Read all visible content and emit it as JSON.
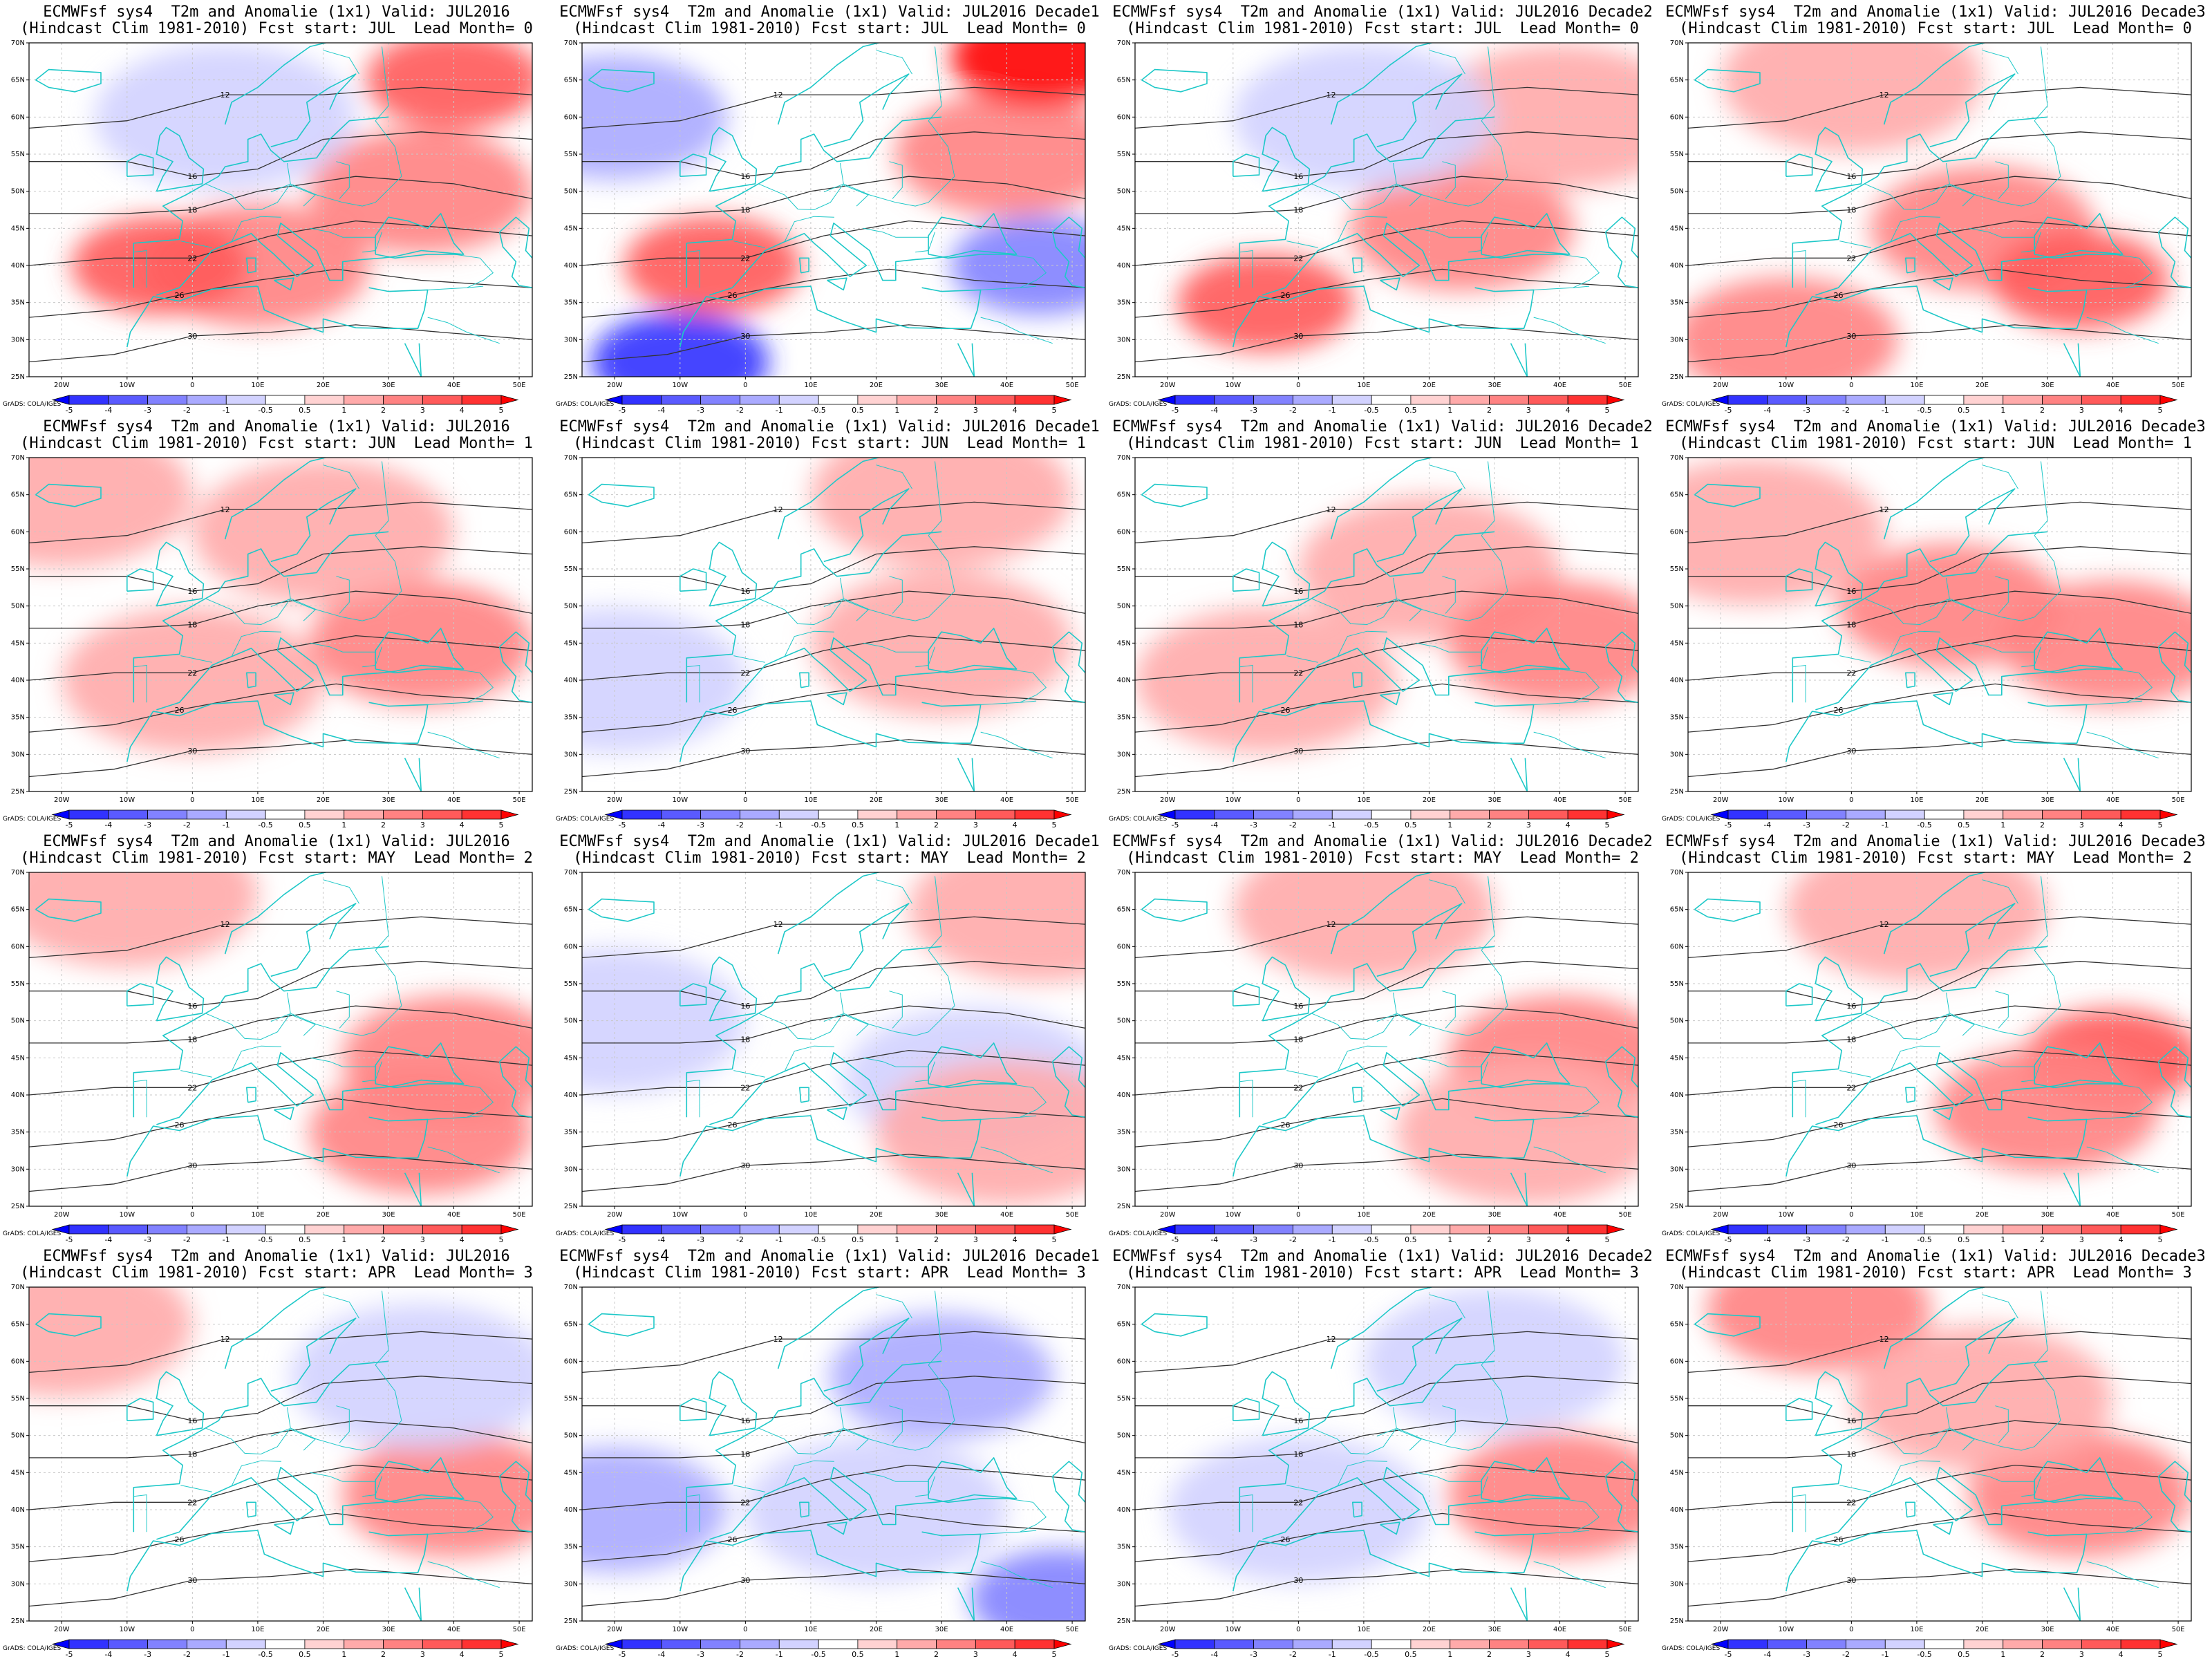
{
  "figure": {
    "credit": "GrADS: COLA/IGES",
    "lon_ticks": [
      "20W",
      "10W",
      "0",
      "10E",
      "20E",
      "30E",
      "40E",
      "50E"
    ],
    "lat_ticks": [
      "25N",
      "30N",
      "35N",
      "40N",
      "45N",
      "50N",
      "55N",
      "60N",
      "65N",
      "70N"
    ],
    "colorbar": {
      "labels": [
        "-5",
        "-4",
        "-3",
        "-2",
        "-1",
        "-0.5",
        "0.5",
        "1",
        "2",
        "3",
        "4",
        "5"
      ],
      "colors": [
        "#0000ff",
        "#3232ff",
        "#5a5aff",
        "#8282ff",
        "#aaaaff",
        "#d2d2ff",
        "#ffffff",
        "#ffd2d2",
        "#ffaaaa",
        "#ff8282",
        "#ff5a5a",
        "#ff3232",
        "#ff0000"
      ]
    },
    "coast_color": "#1ec8c8",
    "contour_labels": [
      "12",
      "16",
      "18",
      "22",
      "26",
      "30"
    ]
  },
  "panels": [
    {
      "line1": "ECMWFsf sys4  T2m and Anomalie (1x1) Valid: JUL2016",
      "line2": "(Hindcast Clim 1981-2010) Fcst start: JUL  Lead Month= 0",
      "anomaly": [
        {
          "lon": 10,
          "lat": 40,
          "v": 2
        },
        {
          "lon": -5,
          "lat": 40,
          "v": 3
        },
        {
          "lon": 35,
          "lat": 50,
          "v": 2
        },
        {
          "lon": 40,
          "lat": 65,
          "v": 3
        },
        {
          "lon": 5,
          "lat": 60,
          "v": -1
        }
      ]
    },
    {
      "line1": "ECMWFsf sys4  T2m and Anomalie (1x1) Valid: JUL2016 Decade1",
      "line2": "(Hindcast Clim 1981-2010) Fcst start: JUL  Lead Month= 0",
      "anomaly": [
        {
          "lon": -20,
          "lat": 60,
          "v": -2
        },
        {
          "lon": -10,
          "lat": 27,
          "v": -5
        },
        {
          "lon": 40,
          "lat": 55,
          "v": 2
        },
        {
          "lon": 45,
          "lat": 68,
          "v": 5
        },
        {
          "lon": -5,
          "lat": 40,
          "v": 3
        },
        {
          "lon": 45,
          "lat": 40,
          "v": -3
        }
      ]
    },
    {
      "line1": "ECMWFsf sys4  T2m and Anomalie (1x1) Valid: JUL2016 Decade2",
      "line2": "(Hindcast Clim 1981-2010) Fcst start: JUL  Lead Month= 0",
      "anomaly": [
        {
          "lon": 25,
          "lat": 45,
          "v": 2
        },
        {
          "lon": -5,
          "lat": 35,
          "v": 3
        },
        {
          "lon": 40,
          "lat": 60,
          "v": 1
        },
        {
          "lon": 10,
          "lat": 60,
          "v": -1
        }
      ]
    },
    {
      "line1": "ECMWFsf sys4  T2m and Anomalie (1x1) Valid: JUL2016 Decade3",
      "line2": "(Hindcast Clim 1981-2010) Fcst start: JUL  Lead Month= 0",
      "anomaly": [
        {
          "lon": 20,
          "lat": 45,
          "v": 2
        },
        {
          "lon": 35,
          "lat": 38,
          "v": 3
        },
        {
          "lon": 0,
          "lat": 65,
          "v": 1
        },
        {
          "lon": -10,
          "lat": 30,
          "v": 2
        }
      ]
    },
    {
      "line1": "ECMWFsf sys4  T2m and Anomalie (1x1) Valid: JUL2016",
      "line2": "(Hindcast Clim 1981-2010) Fcst start: JUN  Lead Month= 1",
      "anomaly": [
        {
          "lon": 35,
          "lat": 45,
          "v": 2
        },
        {
          "lon": -20,
          "lat": 65,
          "v": 1
        },
        {
          "lon": 20,
          "lat": 60,
          "v": 1
        },
        {
          "lon": 0,
          "lat": 40,
          "v": 1
        }
      ]
    },
    {
      "line1": "ECMWFsf sys4  T2m and Anomalie (1x1) Valid: JUL2016 Decade1",
      "line2": "(Hindcast Clim 1981-2010) Fcst start: JUN  Lead Month= 1",
      "anomaly": [
        {
          "lon": 30,
          "lat": 45,
          "v": 1
        },
        {
          "lon": -20,
          "lat": 40,
          "v": -1
        },
        {
          "lon": 30,
          "lat": 65,
          "v": 1
        }
      ]
    },
    {
      "line1": "ECMWFsf sys4  T2m and Anomalie (1x1) Valid: JUL2016 Decade2",
      "line2": "(Hindcast Clim 1981-2010) Fcst start: JUN  Lead Month= 1",
      "anomaly": [
        {
          "lon": 20,
          "lat": 55,
          "v": 1
        },
        {
          "lon": 40,
          "lat": 45,
          "v": 2
        },
        {
          "lon": -5,
          "lat": 40,
          "v": 1
        }
      ]
    },
    {
      "line1": "ECMWFsf sys4  T2m and Anomalie (1x1) Valid: JUL2016 Decade3",
      "line2": "(Hindcast Clim 1981-2010) Fcst start: JUN  Lead Month= 1",
      "anomaly": [
        {
          "lon": 15,
          "lat": 50,
          "v": 2
        },
        {
          "lon": 40,
          "lat": 45,
          "v": 2
        },
        {
          "lon": -15,
          "lat": 60,
          "v": 1
        }
      ]
    },
    {
      "line1": "ECMWFsf sys4  T2m and Anomalie (1x1) Valid: JUL2016",
      "line2": "(Hindcast Clim 1981-2010) Fcst start: MAY  Lead Month= 2",
      "anomaly": [
        {
          "lon": 40,
          "lat": 45,
          "v": 2
        },
        {
          "lon": -10,
          "lat": 67,
          "v": 1
        },
        {
          "lon": 35,
          "lat": 35,
          "v": 2
        }
      ]
    },
    {
      "line1": "ECMWFsf sys4  T2m and Anomalie (1x1) Valid: JUL2016 Decade1",
      "line2": "(Hindcast Clim 1981-2010) Fcst start: MAY  Lead Month= 2",
      "anomaly": [
        {
          "lon": -20,
          "lat": 50,
          "v": -1
        },
        {
          "lon": 35,
          "lat": 42,
          "v": -1
        },
        {
          "lon": 45,
          "lat": 65,
          "v": 1
        },
        {
          "lon": 40,
          "lat": 35,
          "v": 1
        }
      ]
    },
    {
      "line1": "ECMWFsf sys4  T2m and Anomalie (1x1) Valid: JUL2016 Decade2",
      "line2": "(Hindcast Clim 1981-2010) Fcst start: MAY  Lead Month= 2",
      "anomaly": [
        {
          "lon": 40,
          "lat": 45,
          "v": 2
        },
        {
          "lon": 10,
          "lat": 65,
          "v": 1
        },
        {
          "lon": 35,
          "lat": 35,
          "v": 1
        }
      ]
    },
    {
      "line1": "ECMWFsf sys4  T2m and Anomalie (1x1) Valid: JUL2016 Decade3",
      "line2": "(Hindcast Clim 1981-2010) Fcst start: MAY  Lead Month= 2",
      "anomaly": [
        {
          "lon": 40,
          "lat": 45,
          "v": 3
        },
        {
          "lon": 10,
          "lat": 65,
          "v": 1
        },
        {
          "lon": 30,
          "lat": 38,
          "v": 2
        }
      ]
    },
    {
      "line1": "ECMWFsf sys4  T2m and Anomalie (1x1) Valid: JUL2016",
      "line2": "(Hindcast Clim 1981-2010) Fcst start: APR  Lead Month= 3",
      "anomaly": [
        {
          "lon": 40,
          "lat": 42,
          "v": 2
        },
        {
          "lon": 35,
          "lat": 58,
          "v": -1
        },
        {
          "lon": -20,
          "lat": 65,
          "v": 1
        }
      ]
    },
    {
      "line1": "ECMWFsf sys4  T2m and Anomalie (1x1) Valid: JUL2016 Decade1",
      "line2": "(Hindcast Clim 1981-2010) Fcst start: APR  Lead Month= 3",
      "anomaly": [
        {
          "lon": 30,
          "lat": 58,
          "v": -2
        },
        {
          "lon": -20,
          "lat": 40,
          "v": -2
        },
        {
          "lon": 20,
          "lat": 40,
          "v": -1
        },
        {
          "lon": 48,
          "lat": 28,
          "v": -3
        }
      ]
    },
    {
      "line1": "ECMWFsf sys4  T2m and Anomalie (1x1) Valid: JUL2016 Decade2",
      "line2": "(Hindcast Clim 1981-2010) Fcst start: APR  Lead Month= 3",
      "anomaly": [
        {
          "lon": 40,
          "lat": 42,
          "v": 2
        },
        {
          "lon": 0,
          "lat": 40,
          "v": -1
        },
        {
          "lon": 30,
          "lat": 60,
          "v": -1
        }
      ]
    },
    {
      "line1": "ECMWFsf sys4  T2m and Anomalie (1x1) Valid: JUL2016 Decade3",
      "line2": "(Hindcast Clim 1981-2010) Fcst start: APR  Lead Month= 3",
      "anomaly": [
        {
          "lon": -5,
          "lat": 67,
          "v": 2
        },
        {
          "lon": 35,
          "lat": 42,
          "v": 2
        },
        {
          "lon": 20,
          "lat": 55,
          "v": 1
        }
      ]
    }
  ]
}
